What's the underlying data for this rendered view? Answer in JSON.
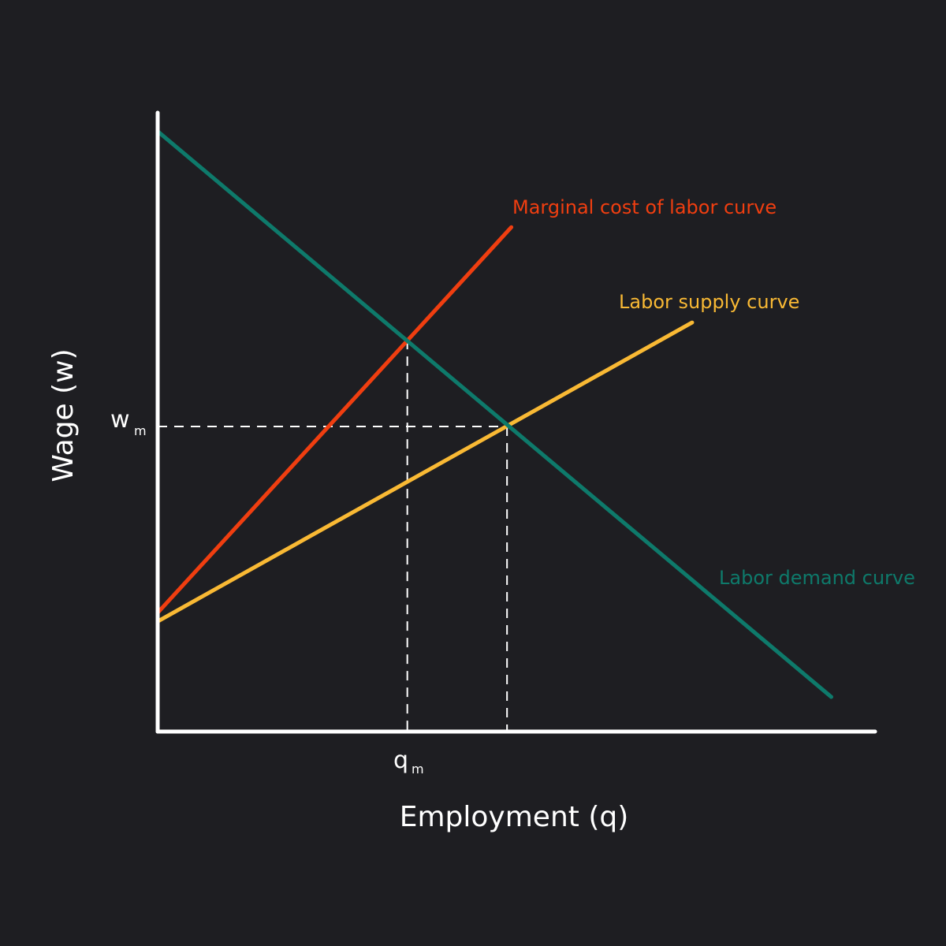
{
  "chart_data": {
    "type": "line",
    "xlabel": "Employment (q)",
    "ylabel": "Wage (w)",
    "xlim": [
      0,
      100
    ],
    "ylim": [
      0,
      100
    ],
    "grid": false,
    "legend": "none",
    "colors": {
      "background": "#1e1e22",
      "axis": "#ffffff",
      "demand": "#0e7a6b",
      "mcl": "#f03e10",
      "supply": "#f9b934"
    },
    "series": [
      {
        "name": "Marginal cost of labor curve",
        "key": "mcl",
        "x": [
          0,
          49.3
        ],
        "y": [
          19.2,
          81.5
        ]
      },
      {
        "name": "Labor supply curve",
        "key": "supply",
        "x": [
          0,
          74.5
        ],
        "y": [
          17.8,
          66.1
        ]
      },
      {
        "name": "Labor demand curve",
        "key": "demand",
        "x": [
          0,
          93.9
        ],
        "y": [
          97.0,
          5.6
        ]
      }
    ],
    "points": {
      "monopsony": {
        "x": 34.8,
        "y": 63.3
      },
      "competitive": {
        "x": 48.7,
        "y": 49.3
      }
    },
    "ticks": {
      "x": {
        "main": "q",
        "sub": "m",
        "value": 34.8
      },
      "y": {
        "main": "w",
        "sub": "m",
        "value": 49.3
      }
    }
  }
}
